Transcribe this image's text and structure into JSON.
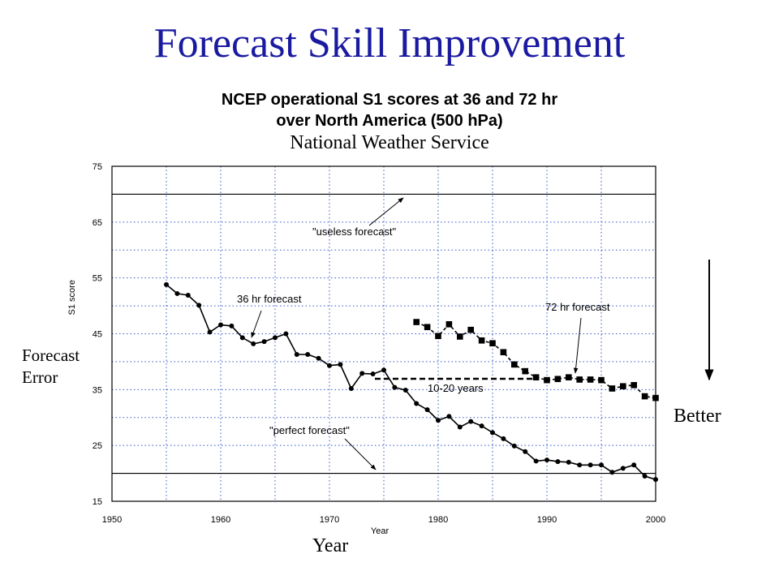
{
  "slide": {
    "title": "Forecast Skill Improvement",
    "chart_title_line1": "NCEP operational S1 scores at 36 and 72 hr",
    "chart_title_line2": "over North America (500 hPa)",
    "subtitle": "National Weather Service",
    "forecast_error_line1": "Forecast",
    "forecast_error_line2": "Error",
    "year_label": "Year",
    "better_label": "Better"
  },
  "chart_data": {
    "type": "line",
    "xlabel": "Year",
    "ylabel": "S1 score",
    "xlim": [
      1950,
      2000
    ],
    "ylim": [
      15,
      75
    ],
    "xticks": [
      1950,
      1960,
      1970,
      1980,
      1990,
      2000
    ],
    "yticks": [
      15,
      25,
      35,
      45,
      55,
      65,
      75
    ],
    "grid": true,
    "reference_lines": [
      {
        "label": "\"useless forecast\"",
        "y": 70
      },
      {
        "label": "\"perfect forecast\"",
        "y": 20
      }
    ],
    "series": [
      {
        "name": "36 hr forecast",
        "marker": "circle",
        "x": [
          1955,
          1956,
          1957,
          1958,
          1959,
          1960,
          1961,
          1962,
          1963,
          1964,
          1965,
          1966,
          1967,
          1968,
          1969,
          1970,
          1971,
          1972,
          1973,
          1974,
          1975,
          1976,
          1977,
          1978,
          1979,
          1980,
          1981,
          1982,
          1983,
          1984,
          1985,
          1986,
          1987,
          1988,
          1989,
          1990,
          1991,
          1992,
          1993,
          1994,
          1995,
          1996,
          1997,
          1998,
          1999,
          2000
        ],
        "values": [
          53.8,
          52.2,
          51.9,
          50.1,
          45.3,
          46.6,
          46.4,
          44.3,
          43.2,
          43.6,
          44.3,
          45.0,
          41.3,
          41.3,
          40.6,
          39.3,
          39.5,
          35.2,
          37.9,
          37.8,
          38.5,
          35.4,
          34.9,
          32.5,
          31.4,
          29.5,
          30.2,
          28.3,
          29.3,
          28.5,
          27.3,
          26.2,
          24.9,
          23.9,
          22.2,
          22.4,
          22.1,
          22.0,
          21.5,
          21.5,
          21.5,
          20.2,
          20.9,
          21.5,
          19.5,
          18.9
        ]
      },
      {
        "name": "72 hr forecast",
        "marker": "square",
        "x": [
          1978,
          1979,
          1980,
          1981,
          1982,
          1983,
          1984,
          1985,
          1986,
          1987,
          1988,
          1989,
          1990,
          1991,
          1992,
          1993,
          1994,
          1995,
          1996,
          1997,
          1998,
          1999,
          2000
        ],
        "values": [
          47.1,
          46.2,
          44.6,
          46.7,
          44.5,
          45.7,
          43.8,
          43.3,
          41.7,
          39.5,
          38.3,
          37.2,
          36.7,
          36.9,
          37.2,
          36.8,
          36.8,
          36.7,
          35.2,
          35.6,
          35.8,
          33.8,
          33.5
        ]
      }
    ],
    "annotations": {
      "useless": "\"useless forecast\"",
      "perfect": "\"perfect forecast\"",
      "f36": "36 hr forecast",
      "f72": "72 hr forecast",
      "gap": "10-20 years"
    }
  }
}
